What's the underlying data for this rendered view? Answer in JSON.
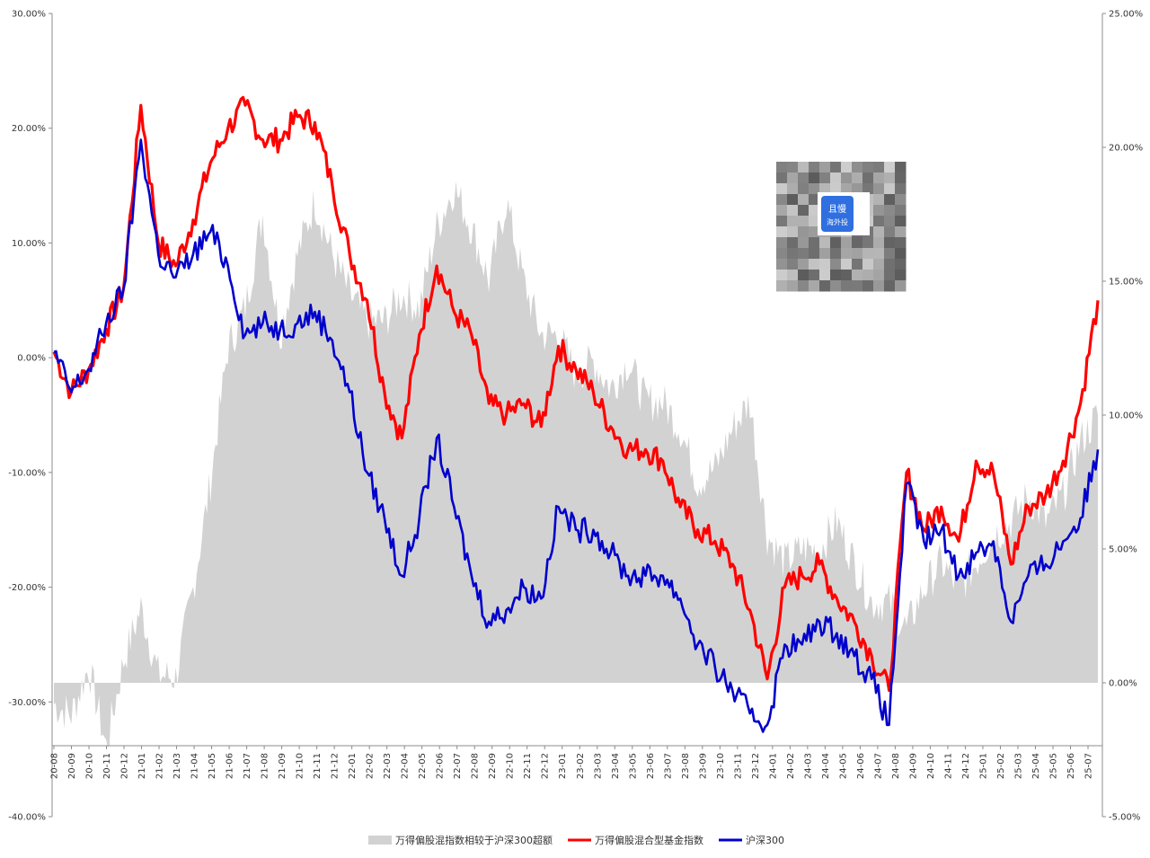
{
  "chart_data": {
    "type": "line",
    "title": "",
    "xlabel": "",
    "ylabel": "",
    "ylim_left": [
      -40,
      30
    ],
    "ylim_right": [
      -5,
      25
    ],
    "yticks_left": [
      "30.00%",
      "20.00%",
      "10.00%",
      "0.00%",
      "-10.00%",
      "-20.00%",
      "-30.00%",
      "-40.00%"
    ],
    "yticks_right": [
      "25.00%",
      "20.00%",
      "15.00%",
      "10.00%",
      "5.00%",
      "0.00%",
      "-5.00%"
    ],
    "x_ticks": [
      "20-08",
      "20-09",
      "20-10",
      "20-11",
      "20-12",
      "21-01",
      "21-02",
      "21-03",
      "21-04",
      "21-05",
      "21-06",
      "21-07",
      "21-08",
      "21-09",
      "21-10",
      "21-11",
      "21-12",
      "22-01",
      "22-02",
      "22-03",
      "22-04",
      "22-05",
      "22-06",
      "22-07",
      "22-08",
      "22-09",
      "22-10",
      "22-11",
      "22-12",
      "23-01",
      "23-02",
      "23-03",
      "23-04",
      "23-05",
      "23-06",
      "23-07",
      "23-08",
      "23-09",
      "23-10",
      "23-11",
      "23-12",
      "24-01",
      "24-02",
      "24-03",
      "24-04",
      "24-05",
      "24-06",
      "24-07",
      "24-08",
      "24-09",
      "24-10",
      "24-11",
      "24-12",
      "25-01",
      "25-02",
      "25-03",
      "25-04",
      "25-05",
      "25-06",
      "25-07"
    ],
    "grid": false,
    "legend_position": "bottom",
    "series": [
      {
        "name": "万得偏股混指数相较于沪深300超额",
        "axis": "right",
        "type": "area",
        "color": "#d3d2d3",
        "x": [
          "20-08",
          "20-09",
          "20-10",
          "20-11",
          "20-12",
          "21-01",
          "21-02",
          "21-03",
          "21-04",
          "21-05",
          "21-06",
          "21-07",
          "21-08",
          "21-09",
          "21-10",
          "21-11",
          "21-12",
          "22-01",
          "22-02",
          "22-03",
          "22-04",
          "22-05",
          "22-06",
          "22-07",
          "22-08",
          "22-09",
          "22-10",
          "22-11",
          "22-12",
          "23-01",
          "23-02",
          "23-03",
          "23-04",
          "23-05",
          "23-06",
          "23-07",
          "23-08",
          "23-09",
          "23-10",
          "23-11",
          "23-12",
          "24-01",
          "24-02",
          "24-03",
          "24-04",
          "24-05",
          "24-06",
          "24-07",
          "24-08",
          "24-09",
          "24-10",
          "24-11",
          "24-12",
          "25-01",
          "25-02",
          "25-03",
          "25-04",
          "25-05",
          "25-06",
          "25-07",
          "25-08"
        ],
        "values": [
          -0.8,
          -1.2,
          0.6,
          -2.4,
          0.8,
          2.8,
          0.3,
          0.2,
          3.5,
          7.5,
          12.5,
          14.0,
          17.5,
          13.0,
          16.0,
          18.0,
          16.0,
          14.5,
          13.5,
          13.5,
          14.5,
          14.0,
          17.0,
          18.5,
          17.0,
          15.0,
          18.0,
          15.0,
          13.0,
          13.0,
          11.5,
          12.0,
          11.0,
          12.0,
          10.5,
          10.5,
          9.5,
          7.5,
          8.0,
          9.5,
          10.5,
          5.5,
          4.5,
          5.0,
          5.0,
          6.0,
          4.5,
          3.0,
          3.0,
          2.0,
          3.5,
          4.5,
          3.5,
          4.5,
          5.5,
          6.0,
          7.0,
          6.0,
          7.0,
          9.0,
          10.0
        ]
      },
      {
        "name": "万得偏股混合型基金指数",
        "axis": "left",
        "type": "line",
        "color": "#ff0000",
        "x": [
          "20-08",
          "20-09",
          "20-10",
          "20-11",
          "20-12",
          "21-01",
          "21-02",
          "21-03",
          "21-04",
          "21-05",
          "21-06",
          "21-07",
          "21-08",
          "21-09",
          "21-10",
          "21-11",
          "21-12",
          "22-01",
          "22-02",
          "22-03",
          "22-04",
          "22-05",
          "22-06",
          "22-07",
          "22-08",
          "22-09",
          "22-10",
          "22-11",
          "22-12",
          "23-01",
          "23-02",
          "23-03",
          "23-04",
          "23-05",
          "23-06",
          "23-07",
          "23-08",
          "23-09",
          "23-10",
          "23-11",
          "23-12",
          "24-01",
          "24-02",
          "24-03",
          "24-04",
          "24-05",
          "24-06",
          "24-07",
          "24-08",
          "24-09",
          "24-10",
          "24-11",
          "24-12",
          "25-01",
          "25-02",
          "25-03",
          "25-04",
          "25-05",
          "25-06",
          "25-07",
          "25-08"
        ],
        "values": [
          0.5,
          -3.0,
          -1.0,
          2.5,
          6.0,
          22.0,
          10.0,
          8.0,
          12.0,
          17.0,
          20.0,
          22.0,
          19.0,
          19.0,
          21.0,
          20.5,
          15.0,
          9.0,
          5.0,
          -3.0,
          -7.0,
          2.0,
          8.0,
          4.0,
          2.0,
          -4.0,
          -5.0,
          -4.0,
          -6.0,
          1.0,
          -1.0,
          -3.0,
          -6.0,
          -8.0,
          -8.0,
          -9.0,
          -13.0,
          -15.0,
          -16.0,
          -18.0,
          -22.0,
          -28.0,
          -20.0,
          -19.0,
          -18.0,
          -21.0,
          -23.0,
          -26.0,
          -29.0,
          -10.0,
          -15.0,
          -13.0,
          -16.0,
          -9.0,
          -10.0,
          -18.0,
          -13.0,
          -12.0,
          -9.0,
          -4.0,
          5.0
        ]
      },
      {
        "name": "沪深300",
        "axis": "left",
        "type": "line",
        "color": "#0000cc",
        "x": [
          "20-08",
          "20-09",
          "20-10",
          "20-11",
          "20-12",
          "21-01",
          "21-02",
          "21-03",
          "21-04",
          "21-05",
          "21-06",
          "21-07",
          "21-08",
          "21-09",
          "21-10",
          "21-11",
          "21-12",
          "22-01",
          "22-02",
          "22-03",
          "22-04",
          "22-05",
          "22-06",
          "22-07",
          "22-08",
          "22-09",
          "22-10",
          "22-11",
          "22-12",
          "23-01",
          "23-02",
          "23-03",
          "23-04",
          "23-05",
          "23-06",
          "23-07",
          "23-08",
          "23-09",
          "23-10",
          "23-11",
          "23-12",
          "24-01",
          "24-02",
          "24-03",
          "24-04",
          "24-05",
          "24-06",
          "24-07",
          "24-08",
          "24-09",
          "24-10",
          "24-11",
          "24-12",
          "25-01",
          "25-02",
          "25-03",
          "25-04",
          "25-05",
          "25-06",
          "25-07",
          "25-08"
        ],
        "values": [
          0.5,
          -3.0,
          -1.0,
          3.0,
          6.0,
          19.0,
          9.0,
          7.0,
          9.0,
          11.0,
          8.0,
          2.0,
          3.0,
          2.5,
          3.0,
          4.0,
          1.5,
          -3.0,
          -10.0,
          -14.0,
          -19.0,
          -14.0,
          -7.0,
          -13.0,
          -19.0,
          -23.0,
          -22.0,
          -20.0,
          -21.0,
          -13.0,
          -15.0,
          -15.0,
          -17.0,
          -19.0,
          -19.0,
          -19.0,
          -21.0,
          -25.0,
          -27.0,
          -29.0,
          -31.0,
          -32.0,
          -25.0,
          -25.0,
          -23.0,
          -24.0,
          -26.0,
          -28.0,
          -32.0,
          -11.0,
          -16.0,
          -15.0,
          -19.0,
          -17.0,
          -16.0,
          -23.0,
          -19.0,
          -18.0,
          -16.0,
          -14.0,
          -8.0
        ]
      }
    ]
  },
  "legend": {
    "items": [
      {
        "label": "万得偏股混指数相较于沪深300超额",
        "color": "#d3d2d3"
      },
      {
        "label": "万得偏股混合型基金指数",
        "color": "#ff0000"
      },
      {
        "label": "沪深300",
        "color": "#0000cc"
      }
    ]
  },
  "watermark": {
    "text": "且慢 海外投"
  }
}
